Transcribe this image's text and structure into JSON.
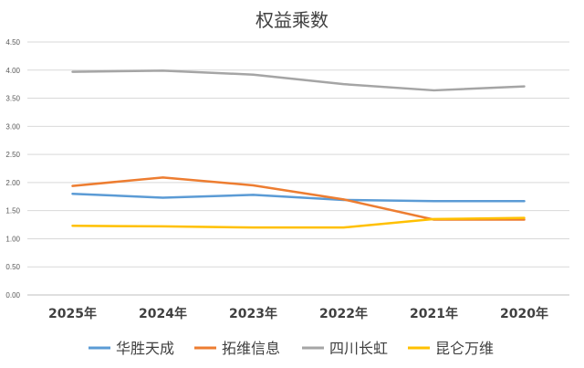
{
  "chart_data": {
    "type": "line",
    "title": "权益乘数",
    "categories": [
      "2025年",
      "2024年",
      "2023年",
      "2022年",
      "2021年",
      "2020年"
    ],
    "ylim": [
      0,
      4.5
    ],
    "yticks": [
      "0.00",
      "0.50",
      "1.00",
      "1.50",
      "2.00",
      "2.50",
      "3.00",
      "3.50",
      "4.00",
      "4.50"
    ],
    "grid": true,
    "legend_position": "bottom",
    "series": [
      {
        "name": "华胜天成",
        "color": "#5B9BD5",
        "values": [
          1.8,
          1.73,
          1.78,
          1.69,
          1.67,
          1.67
        ]
      },
      {
        "name": "拓维信息",
        "color": "#ED7D31",
        "values": [
          1.94,
          2.09,
          1.95,
          1.7,
          1.34,
          1.34
        ]
      },
      {
        "name": "四川长虹",
        "color": "#A5A5A5",
        "values": [
          3.97,
          3.99,
          3.92,
          3.75,
          3.64,
          3.71
        ]
      },
      {
        "name": "昆仑万维",
        "color": "#FFC000",
        "values": [
          1.23,
          1.22,
          1.2,
          1.2,
          1.35,
          1.37
        ]
      }
    ]
  }
}
